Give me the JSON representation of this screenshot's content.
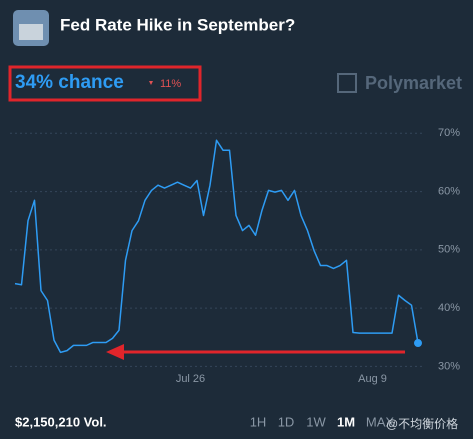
{
  "chart_data": {
    "type": "line",
    "title": "Fed Rate Hike in September?",
    "headline": "34% chance",
    "change": "11%",
    "brand": "Polymarket",
    "volume": "$2,150,210 Vol.",
    "ranges": [
      "1H",
      "1D",
      "1W",
      "1M",
      "MAX"
    ],
    "active_range": 3,
    "watermark": "@不均衡价格",
    "color": "#2e9cf4",
    "categories": [
      null,
      null,
      null,
      null,
      null,
      null,
      null,
      null,
      null,
      null,
      null,
      null,
      null,
      null,
      null,
      null,
      null,
      null,
      null,
      null,
      null,
      null,
      null,
      null,
      null,
      null,
      null,
      "Jul 26",
      null,
      null,
      null,
      null,
      null,
      null,
      null,
      null,
      null,
      null,
      null,
      null,
      null,
      null,
      null,
      null,
      null,
      null,
      null,
      null,
      null,
      null,
      null,
      null,
      null,
      null,
      null,
      "Aug 9",
      null,
      null,
      null,
      null,
      null,
      null,
      null
    ],
    "values": [
      44.2,
      44,
      55,
      58.5,
      43,
      41.3,
      34.5,
      32.4,
      32.7,
      33.6,
      33.6,
      33.6,
      34.1,
      34.1,
      34.1,
      34.8,
      36.2,
      48.2,
      53.3,
      55,
      58.5,
      60.2,
      61.1,
      60.6,
      61.1,
      61.6,
      61.1,
      60.6,
      61.9,
      55.9,
      61.1,
      68.8,
      67.1,
      67.1,
      55.9,
      53.3,
      54.2,
      52.5,
      56.8,
      60.2,
      59.9,
      60.2,
      58.5,
      60.2,
      55.9,
      53.3,
      49.9,
      47.3,
      47.3,
      46.8,
      47.3,
      48.2,
      35.8,
      35.7,
      35.7,
      35.7,
      35.7,
      35.7,
      35.7,
      42.2,
      41.3,
      40.5,
      34
    ],
    "ylim": [
      28,
      74
    ],
    "yticks": [
      {
        "value": 30,
        "label": "30%"
      },
      {
        "value": 40,
        "label": "40%"
      },
      {
        "value": 50,
        "label": "50%"
      },
      {
        "value": 60,
        "label": "60%"
      },
      {
        "value": 70,
        "label": "70%"
      }
    ],
    "grid": true
  }
}
